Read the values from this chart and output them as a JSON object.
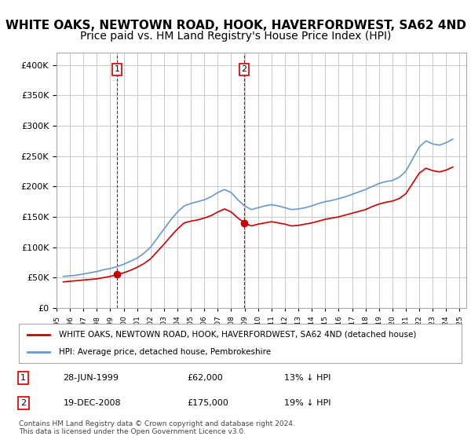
{
  "title": "WHITE OAKS, NEWTOWN ROAD, HOOK, HAVERFORDWEST, SA62 4ND",
  "subtitle": "Price paid vs. HM Land Registry's House Price Index (HPI)",
  "legend_line1": "WHITE OAKS, NEWTOWN ROAD, HOOK, HAVERFORDWEST, SA62 4ND (detached house)",
  "legend_line2": "HPI: Average price, detached house, Pembrokeshire",
  "footnote": "Contains HM Land Registry data © Crown copyright and database right 2024.\nThis data is licensed under the Open Government Licence v3.0.",
  "transactions": [
    {
      "label": "1",
      "date": "28-JUN-1999",
      "price": 62000,
      "pct": "13%",
      "dir": "↓",
      "x": 1999.49
    },
    {
      "label": "2",
      "date": "19-DEC-2008",
      "price": 175000,
      "pct": "19%",
      "dir": "↓",
      "x": 2008.96
    }
  ],
  "transaction_colors": [
    "#cc0000",
    "#cc0000"
  ],
  "hpi_color": "#6699cc",
  "price_color": "#cc0000",
  "annotation_line_color": "#cc0000",
  "ylim": [
    0,
    420000
  ],
  "yticks": [
    0,
    50000,
    100000,
    150000,
    200000,
    250000,
    300000,
    350000,
    400000
  ],
  "xmin": 1995.0,
  "xmax": 2025.5,
  "background_color": "#ffffff",
  "plot_bg_color": "#ffffff",
  "grid_color": "#cccccc",
  "title_fontsize": 11,
  "subtitle_fontsize": 10,
  "hpi_data": {
    "years": [
      1995.5,
      1996.0,
      1996.5,
      1997.0,
      1997.5,
      1998.0,
      1998.5,
      1999.0,
      1999.5,
      2000.0,
      2000.5,
      2001.0,
      2001.5,
      2002.0,
      2002.5,
      2003.0,
      2003.5,
      2004.0,
      2004.5,
      2005.0,
      2005.5,
      2006.0,
      2006.5,
      2007.0,
      2007.5,
      2008.0,
      2008.5,
      2009.0,
      2009.5,
      2010.0,
      2010.5,
      2011.0,
      2011.5,
      2012.0,
      2012.5,
      2013.0,
      2013.5,
      2014.0,
      2014.5,
      2015.0,
      2015.5,
      2016.0,
      2016.5,
      2017.0,
      2017.5,
      2018.0,
      2018.5,
      2019.0,
      2019.5,
      2020.0,
      2020.5,
      2021.0,
      2021.5,
      2022.0,
      2022.5,
      2023.0,
      2023.5,
      2024.0,
      2024.5
    ],
    "values": [
      52000,
      53000,
      54000,
      56000,
      58000,
      60000,
      63000,
      65000,
      68000,
      72000,
      77000,
      82000,
      90000,
      100000,
      115000,
      130000,
      145000,
      158000,
      168000,
      172000,
      175000,
      178000,
      183000,
      190000,
      195000,
      190000,
      178000,
      168000,
      162000,
      165000,
      168000,
      170000,
      168000,
      165000,
      162000,
      163000,
      165000,
      168000,
      172000,
      175000,
      177000,
      180000,
      183000,
      187000,
      191000,
      195000,
      200000,
      205000,
      208000,
      210000,
      215000,
      225000,
      245000,
      265000,
      275000,
      270000,
      268000,
      272000,
      278000
    ]
  },
  "price_data": {
    "years": [
      1995.5,
      1996.0,
      1996.5,
      1997.0,
      1997.5,
      1998.0,
      1998.5,
      1999.0,
      1999.5,
      2000.0,
      2000.5,
      2001.0,
      2001.5,
      2002.0,
      2002.5,
      2003.0,
      2003.5,
      2004.0,
      2004.5,
      2005.0,
      2005.5,
      2006.0,
      2006.5,
      2007.0,
      2007.5,
      2008.0,
      2008.5,
      2009.0,
      2009.5,
      2010.0,
      2010.5,
      2011.0,
      2011.5,
      2012.0,
      2012.5,
      2013.0,
      2013.5,
      2014.0,
      2014.5,
      2015.0,
      2015.5,
      2016.0,
      2016.5,
      2017.0,
      2017.5,
      2018.0,
      2018.5,
      2019.0,
      2019.5,
      2020.0,
      2020.5,
      2021.0,
      2021.5,
      2022.0,
      2022.5,
      2023.0,
      2023.5,
      2024.0,
      2024.5
    ],
    "values": [
      43000,
      44000,
      45000,
      46000,
      47000,
      48000,
      50000,
      52000,
      55000,
      58000,
      62000,
      67000,
      73000,
      81000,
      93000,
      105000,
      118000,
      130000,
      140000,
      143000,
      145000,
      148000,
      152000,
      158000,
      163000,
      158000,
      148000,
      140000,
      135000,
      138000,
      140000,
      142000,
      140000,
      138000,
      135000,
      136000,
      138000,
      140000,
      143000,
      146000,
      148000,
      150000,
      153000,
      156000,
      159000,
      162000,
      167000,
      171000,
      174000,
      176000,
      180000,
      188000,
      205000,
      222000,
      230000,
      226000,
      224000,
      227000,
      232000
    ]
  }
}
